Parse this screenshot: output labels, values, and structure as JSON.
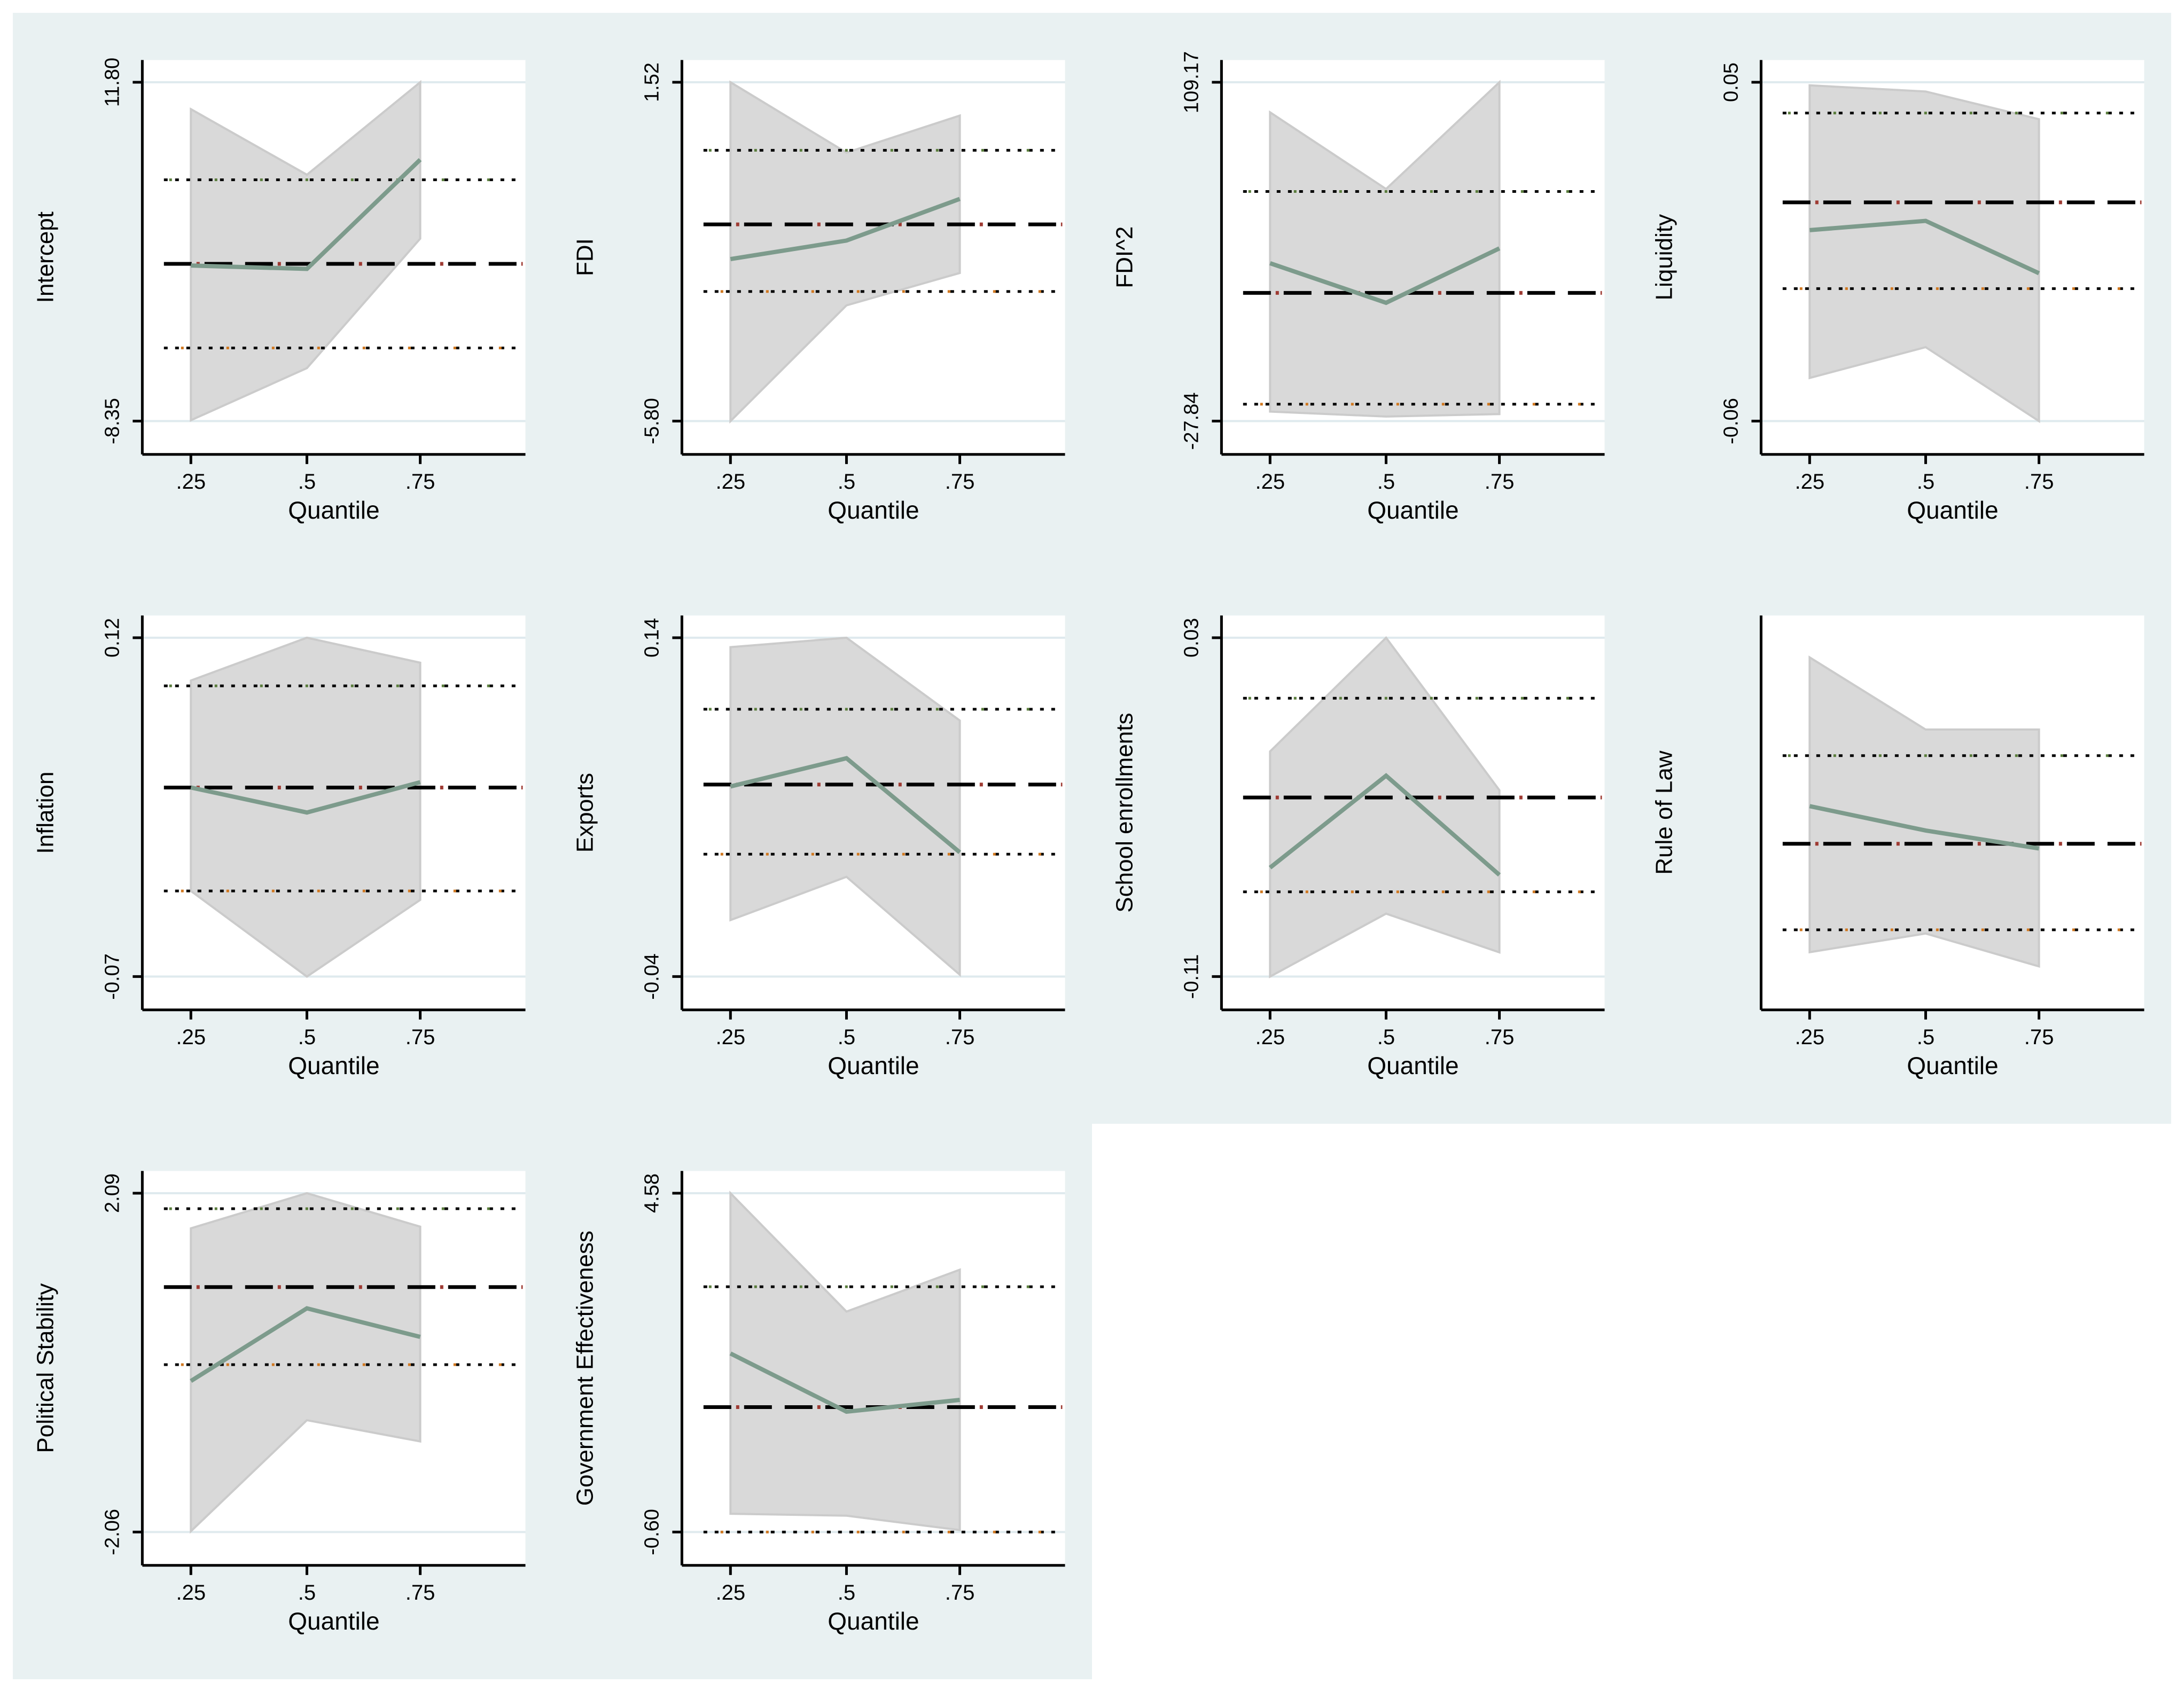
{
  "figure": {
    "description": "Grid of 10 quantile-regression coefficient plots (Stata-style). Each panel: shaded 95% confidence band of quantile estimates, solid green quantile-coefficient line, black dashed OLS coefficient line with maroon specks, black dotted OLS confidence-interval lines with green (upper) and orange (lower) specks.",
    "colors": {
      "page_bg": "#ffffff",
      "panel_bg": "#e9f1f2",
      "plot_bg": "#ffffff",
      "gridline": "#dfeaee",
      "band_fill": "#d9d9d9",
      "band_edge": "#cbcbcb",
      "quantile_line": "#7d9b8c",
      "ols_line": "#000000",
      "ols_speck": "#9e3a32",
      "ci_line": "#000000",
      "ci_upper_speck": "#5a7d3c",
      "ci_lower_speck": "#d07820",
      "axis": "#000000",
      "text": "#000000"
    }
  },
  "x_axis": {
    "label": "Quantile",
    "ticks": [
      ".25",
      ".5",
      ".75"
    ],
    "values": [
      0.25,
      0.5,
      0.75
    ]
  },
  "chart_data": [
    {
      "type": "line",
      "title": "Intercept",
      "ylabel": "Intercept",
      "xlabel": "Quantile",
      "grid": {
        "row": 0,
        "col": 0
      },
      "x": [
        0.25,
        0.5,
        0.75
      ],
      "y_ticks": {
        "hi": {
          "label": "11.80",
          "value": 11.8
        },
        "lo": {
          "label": "-8.35",
          "value": -8.35
        }
      },
      "ylim": [
        -8.35,
        11.8
      ],
      "quantile_line": [
        0.9,
        0.7,
        7.2
      ],
      "ols": 1.0,
      "ols_ci": {
        "upper": 6.0,
        "lower": -4.0
      },
      "band_hi": [
        10.2,
        6.3,
        11.8
      ],
      "band_lo": [
        -8.3,
        -5.2,
        2.5
      ]
    },
    {
      "type": "line",
      "title": "FDI",
      "ylabel": "FDI",
      "xlabel": "Quantile",
      "grid": {
        "row": 0,
        "col": 1
      },
      "x": [
        0.25,
        0.5,
        0.75
      ],
      "y_ticks": {
        "hi": {
          "label": "1.52",
          "value": 1.52
        },
        "lo": {
          "label": "-5.80",
          "value": -5.8
        }
      },
      "ylim": [
        -5.8,
        1.52
      ],
      "quantile_line": [
        -2.3,
        -1.9,
        -1.0
      ],
      "ols": -1.55,
      "ols_ci": {
        "upper": 0.05,
        "lower": -3.0
      },
      "band_hi": [
        1.52,
        0.0,
        0.8
      ],
      "band_lo": [
        -5.8,
        -3.3,
        -2.6
      ]
    },
    {
      "type": "line",
      "title": "FDI^2",
      "ylabel": "FDI^2",
      "xlabel": "Quantile",
      "grid": {
        "row": 0,
        "col": 2
      },
      "x": [
        0.25,
        0.5,
        0.75
      ],
      "y_ticks": {
        "hi": {
          "label": "109.17",
          "value": 109.17
        },
        "lo": {
          "label": "-27.84",
          "value": -27.84
        }
      },
      "ylim": [
        -27.84,
        109.17
      ],
      "quantile_line": [
        36,
        20,
        42
      ],
      "ols": 24,
      "ols_ci": {
        "upper": 65,
        "lower": -21
      },
      "band_hi": [
        97,
        66,
        109.17
      ],
      "band_lo": [
        -24,
        -26,
        -25
      ]
    },
    {
      "type": "line",
      "title": "Liquidity",
      "ylabel": "Liquidity",
      "xlabel": "Quantile",
      "grid": {
        "row": 0,
        "col": 3
      },
      "x": [
        0.25,
        0.5,
        0.75
      ],
      "y_ticks": {
        "hi": {
          "label": "0.05",
          "value": 0.05
        },
        "lo": {
          "label": "-0.06",
          "value": -0.06
        }
      },
      "ylim": [
        -0.06,
        0.05
      ],
      "quantile_line": [
        0.002,
        0.005,
        -0.012
      ],
      "ols": 0.011,
      "ols_ci": {
        "upper": 0.04,
        "lower": -0.017
      },
      "band_hi": [
        0.049,
        0.047,
        0.038
      ],
      "band_lo": [
        -0.046,
        -0.036,
        -0.06
      ]
    },
    {
      "type": "line",
      "title": "Inflation",
      "ylabel": "Inflation",
      "xlabel": "Quantile",
      "grid": {
        "row": 1,
        "col": 0
      },
      "x": [
        0.25,
        0.5,
        0.75
      ],
      "y_ticks": {
        "hi": {
          "label": "0.12",
          "value": 0.12
        },
        "lo": {
          "label": "-0.07",
          "value": -0.07
        }
      },
      "ylim": [
        -0.07,
        0.12
      ],
      "quantile_line": [
        0.036,
        0.022,
        0.039
      ],
      "ols": 0.036,
      "ols_ci": {
        "upper": 0.093,
        "lower": -0.022
      },
      "band_hi": [
        0.096,
        0.12,
        0.106
      ],
      "band_lo": [
        -0.022,
        -0.07,
        -0.027
      ]
    },
    {
      "type": "line",
      "title": "Exports",
      "ylabel": "Exports",
      "xlabel": "Quantile",
      "grid": {
        "row": 1,
        "col": 1
      },
      "x": [
        0.25,
        0.5,
        0.75
      ],
      "y_ticks": {
        "hi": {
          "label": "0.14",
          "value": 0.14
        },
        "lo": {
          "label": "-0.04",
          "value": -0.04
        }
      },
      "ylim": [
        -0.04,
        0.14
      ],
      "quantile_line": [
        0.061,
        0.076,
        0.026
      ],
      "ols": 0.062,
      "ols_ci": {
        "upper": 0.102,
        "lower": 0.025
      },
      "band_hi": [
        0.135,
        0.14,
        0.096
      ],
      "band_lo": [
        -0.01,
        0.013,
        -0.039
      ]
    },
    {
      "type": "line",
      "title": "School enrollments",
      "ylabel": "School enrollments",
      "xlabel": "Quantile",
      "grid": {
        "row": 1,
        "col": 2
      },
      "x": [
        0.25,
        0.5,
        0.75
      ],
      "y_ticks": {
        "hi": {
          "label": "0.03",
          "value": 0.03
        },
        "lo": {
          "label": "-0.11",
          "value": -0.11
        }
      },
      "ylim": [
        -0.11,
        0.03
      ],
      "quantile_line": [
        -0.065,
        -0.027,
        -0.068
      ],
      "ols": -0.036,
      "ols_ci": {
        "upper": 0.005,
        "lower": -0.075
      },
      "band_hi": [
        -0.017,
        0.03,
        -0.033
      ],
      "band_lo": [
        -0.11,
        -0.084,
        -0.1
      ]
    },
    {
      "type": "line",
      "title": "Rule of Law",
      "ylabel": "Rule of Law",
      "xlabel": "Quantile",
      "grid": {
        "row": 1,
        "col": 3
      },
      "x": [
        0.25,
        0.5,
        0.75
      ],
      "y_ticks": null,
      "ylim": [
        0,
        1
      ],
      "note": "No y-axis tick labels shown in source; values are normalized fractions of plot height.",
      "quantile_line": [
        0.503,
        0.431,
        0.378
      ],
      "ols": 0.392,
      "ols_ci": {
        "upper": 0.652,
        "lower": 0.138
      },
      "band_hi": [
        0.942,
        0.729,
        0.729
      ],
      "band_lo": [
        0.072,
        0.127,
        0.03
      ]
    },
    {
      "type": "line",
      "title": "Political Stability",
      "ylabel": "Political Stability",
      "xlabel": "Quantile",
      "grid": {
        "row": 2,
        "col": 0
      },
      "x": [
        0.25,
        0.5,
        0.75
      ],
      "y_ticks": {
        "hi": {
          "label": "2.09",
          "value": 2.09
        },
        "lo": {
          "label": "-2.06",
          "value": -2.06
        }
      },
      "ylim": [
        -2.06,
        2.09
      ],
      "quantile_line": [
        -0.21,
        0.68,
        0.33
      ],
      "ols": 0.94,
      "ols_ci": {
        "upper": 1.9,
        "lower": -0.01
      },
      "band_hi": [
        1.66,
        2.09,
        1.68
      ],
      "band_lo": [
        -2.05,
        -0.69,
        -0.95
      ]
    },
    {
      "type": "line",
      "title": "Government Effectiveness",
      "ylabel": "Government Effectiveness",
      "xlabel": "Quantile",
      "grid": {
        "row": 2,
        "col": 1
      },
      "x": [
        0.25,
        0.5,
        0.75
      ],
      "y_ticks": {
        "hi": {
          "label": "4.58",
          "value": 4.58
        },
        "lo": {
          "label": "-0.60",
          "value": -0.6
        }
      },
      "ylim": [
        -0.6,
        4.58
      ],
      "quantile_line": [
        2.13,
        1.24,
        1.42
      ],
      "ols": 1.31,
      "ols_ci": {
        "upper": 3.15,
        "lower": -0.6
      },
      "band_hi": [
        4.58,
        2.77,
        3.41
      ],
      "band_lo": [
        -0.32,
        -0.35,
        -0.57
      ]
    }
  ]
}
